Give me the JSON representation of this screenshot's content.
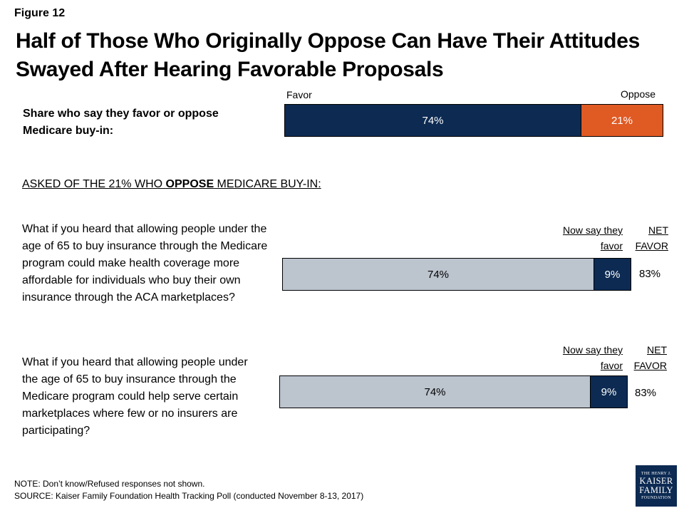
{
  "figure_label": "Figure 12",
  "title": [
    "Half of Those Who Originally Oppose Can Have Their Attitudes",
    "Swayed After Hearing Favorable Proposals"
  ],
  "legend": {
    "favor": "Favor",
    "oppose": "Oppose"
  },
  "q1_label": [
    "Share who say they favor or oppose",
    "Medicare buy-in:"
  ],
  "subhead": {
    "pre": "ASKED OF THE 21% WHO ",
    "bold": "OPPOSE",
    "post": " MEDICARE BUY-IN:"
  },
  "q2_text": "What if you heard that allowing people under the age of 65 to buy insurance through the Medicare program could make health coverage more affordable for individuals who buy their own insurance through the ACA marketplaces?",
  "q3_text": "What if you heard that allowing people under the age of 65 to buy insurance through the Medicare program could help serve certain marketplaces where few or no insurers are participating?",
  "col_headers": {
    "now_favor": [
      "Now say they",
      "favor"
    ],
    "net_favor": [
      "NET",
      "FAVOR"
    ]
  },
  "note": "NOTE: Don’t know/Refused responses not shown.",
  "source": "SOURCE: Kaiser Family Foundation Health Tracking Poll (conducted November 8-13, 2017)",
  "logo": {
    "line1": "THE HENRY J.",
    "line2": "KAISER",
    "line3": "FAMILY",
    "line4": "FOUNDATION"
  },
  "colors": {
    "navy": "#0c2a52",
    "orange": "#e05a24",
    "gray": "#bcc4ce"
  },
  "chart_data": [
    {
      "type": "bar",
      "orientation": "horizontal-stacked",
      "categories": [
        "Share who say they favor or oppose Medicare buy-in:"
      ],
      "series": [
        {
          "name": "Favor",
          "values": [
            74
          ],
          "label": "74%",
          "color": "#0c2a52"
        },
        {
          "name": "Oppose",
          "values": [
            21
          ],
          "label": "21%",
          "color": "#e05a24"
        }
      ]
    },
    {
      "type": "bar",
      "orientation": "horizontal-stacked",
      "categories": [
        "More affordable for individuals buying through ACA marketplaces"
      ],
      "series": [
        {
          "values": [
            74
          ],
          "label": "74%",
          "color": "#bcc4ce"
        },
        {
          "name": "Now say they favor",
          "values": [
            9
          ],
          "label": "9%",
          "color": "#0c2a52"
        }
      ],
      "net_favor": "83%"
    },
    {
      "type": "bar",
      "orientation": "horizontal-stacked",
      "categories": [
        "Serve marketplaces where few or no insurers are participating"
      ],
      "series": [
        {
          "values": [
            74
          ],
          "label": "74%",
          "color": "#bcc4ce"
        },
        {
          "name": "Now say they favor",
          "values": [
            9
          ],
          "label": "9%",
          "color": "#0c2a52"
        }
      ],
      "net_favor": "83%"
    }
  ]
}
